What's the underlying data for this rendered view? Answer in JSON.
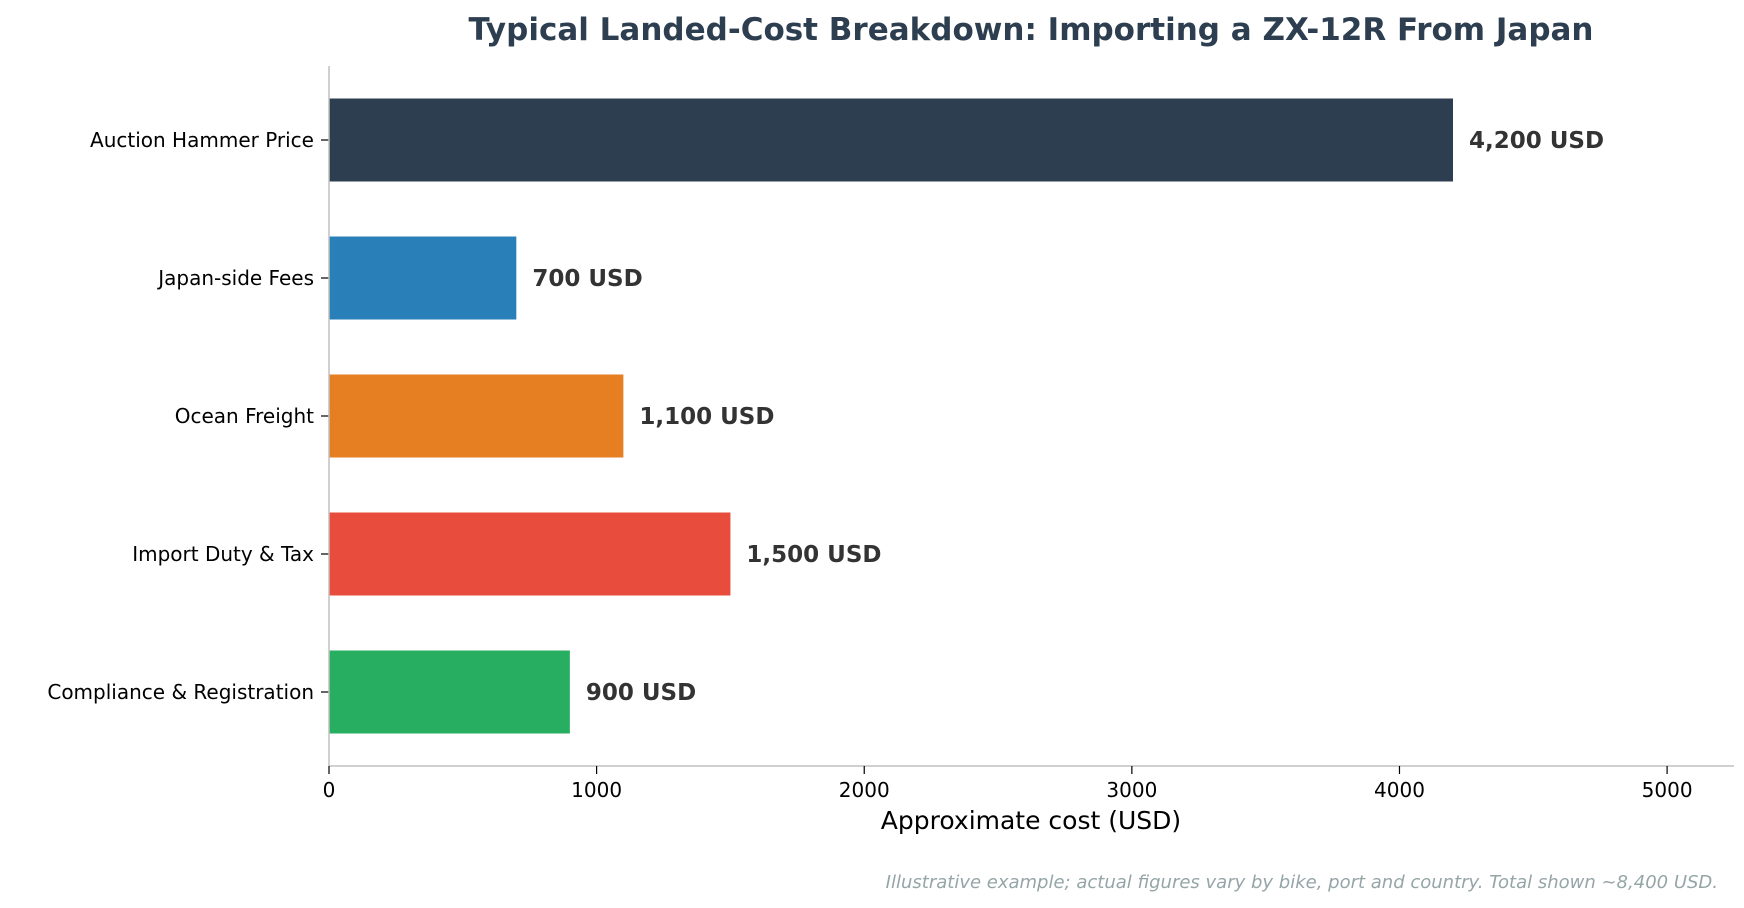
{
  "chart_data": {
    "type": "bar",
    "orientation": "horizontal",
    "title": "Typical Landed-Cost Breakdown: Importing a ZX-12R From Japan",
    "xlabel": "Approximate cost (USD)",
    "ylabel": "",
    "xlim": [
      0,
      5250
    ],
    "xticks": [
      0,
      1000,
      2000,
      3000,
      4000,
      5000
    ],
    "grid": false,
    "categories": [
      "Auction Hammer Price",
      "Japan-side Fees",
      "Ocean Freight",
      "Import Duty & Tax",
      "Compliance & Registration"
    ],
    "values": [
      4200,
      700,
      1100,
      1500,
      900
    ],
    "value_labels": [
      "4,200 USD",
      "700 USD",
      "1,100 USD",
      "1,500 USD",
      "900 USD"
    ],
    "colors": [
      "#2c3e50",
      "#2980b9",
      "#e67e22",
      "#e74c3c",
      "#27ae60"
    ],
    "annotation": "Illustrative example; actual figures vary by bike, port and country. Total shown ~8,400 USD."
  }
}
